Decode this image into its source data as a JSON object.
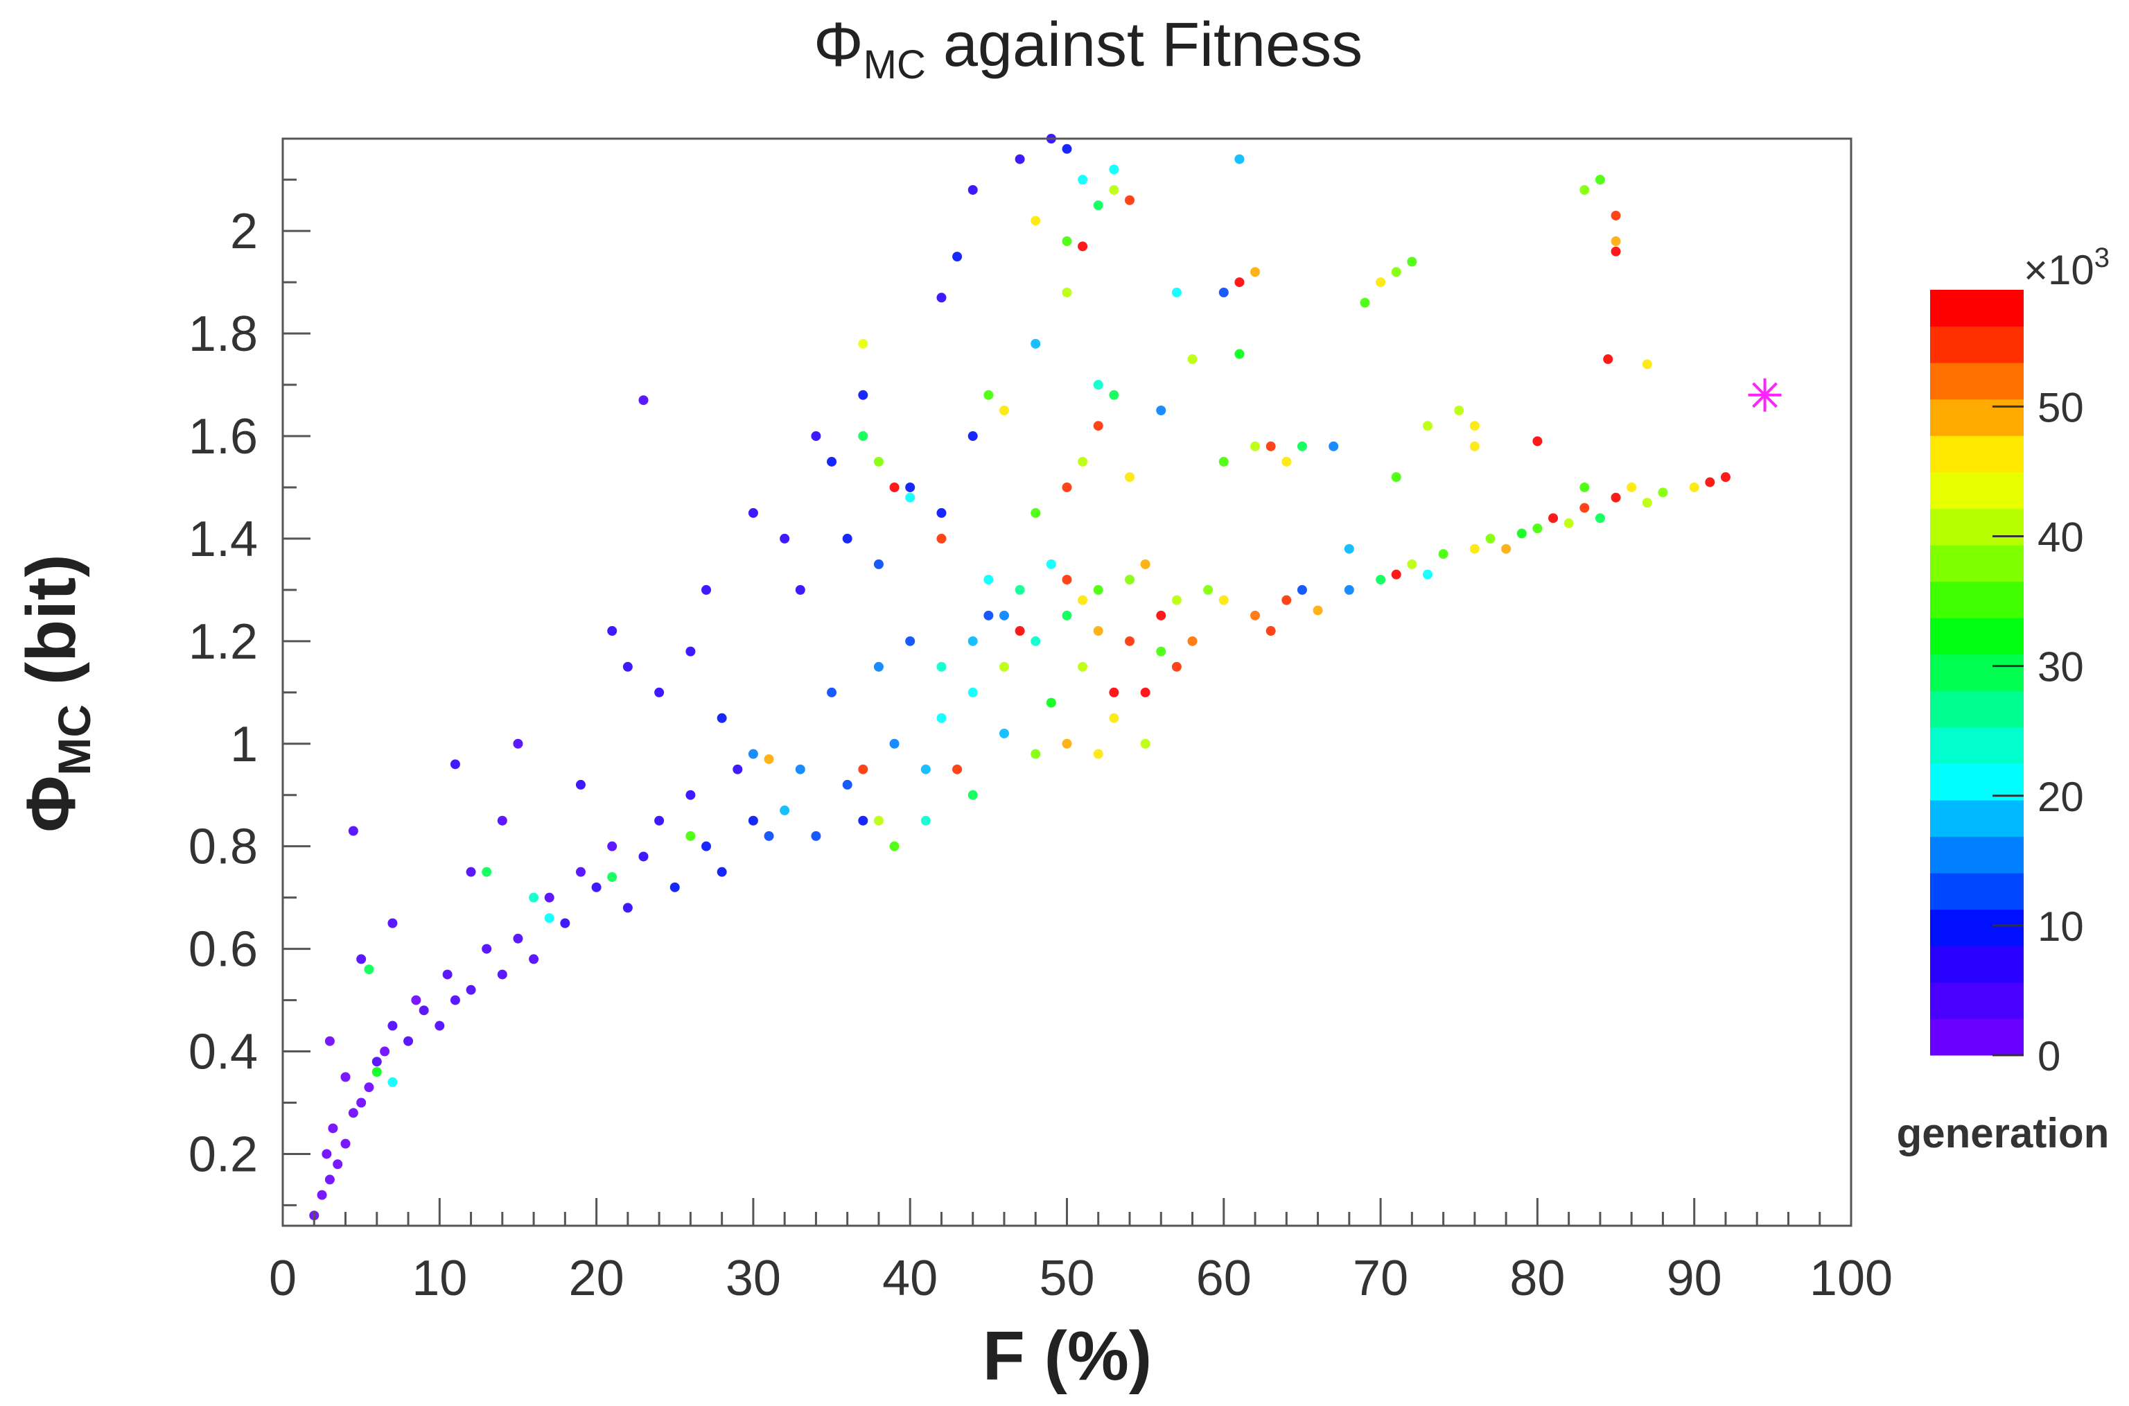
{
  "chart_data": {
    "type": "scatter",
    "title": {
      "symbol": "Φ",
      "sub": "MC",
      "rest": " against Fitness"
    },
    "xlabel": "F (%)",
    "ylabel": {
      "symbol": "Φ",
      "sub": "MC",
      "rest": " (bit)"
    },
    "xlim": [
      0,
      100
    ],
    "ylim": [
      0.06,
      2.18
    ],
    "x_ticks": [
      "0",
      "10",
      "20",
      "30",
      "40",
      "50",
      "60",
      "70",
      "80",
      "90",
      "100"
    ],
    "y_ticks": [
      "0.2",
      "0.4",
      "0.6",
      "0.8",
      "1",
      "1.2",
      "1.4",
      "1.6",
      "1.8",
      "2"
    ],
    "grid": false,
    "colorbar": {
      "label": "generation",
      "multiplier": "×10",
      "multiplier_exp": "3",
      "range": [
        0,
        59
      ],
      "ticks": [
        "0",
        "10",
        "20",
        "30",
        "40",
        "50"
      ],
      "palette": [
        "#6a00ff",
        "#4a00ff",
        "#2a00ff",
        "#0010ff",
        "#0048ff",
        "#0080ff",
        "#00b8ff",
        "#00ffff",
        "#00ffcc",
        "#00ff90",
        "#00ff50",
        "#00ff10",
        "#40ff00",
        "#80ff00",
        "#b8ff00",
        "#e8ff00",
        "#ffe800",
        "#ffaa00",
        "#ff7000",
        "#ff3000",
        "#ff0000"
      ]
    },
    "point_fields": [
      "F",
      "phi_mc",
      "generation_x1000"
    ],
    "points": [
      [
        2,
        0.08,
        1
      ],
      [
        2.5,
        0.12,
        1
      ],
      [
        3,
        0.15,
        2
      ],
      [
        3.5,
        0.18,
        1
      ],
      [
        2.8,
        0.2,
        2
      ],
      [
        4,
        0.22,
        1
      ],
      [
        3.2,
        0.25,
        2
      ],
      [
        4.5,
        0.28,
        2
      ],
      [
        5,
        0.3,
        1
      ],
      [
        4,
        0.35,
        2
      ],
      [
        5.5,
        0.33,
        2
      ],
      [
        6,
        0.38,
        3
      ],
      [
        3,
        0.42,
        2
      ],
      [
        6.5,
        0.4,
        2
      ],
      [
        7,
        0.45,
        3
      ],
      [
        8,
        0.42,
        3
      ],
      [
        8.5,
        0.5,
        2
      ],
      [
        9,
        0.48,
        3
      ],
      [
        10,
        0.45,
        4
      ],
      [
        10.5,
        0.55,
        3
      ],
      [
        11,
        0.5,
        4
      ],
      [
        12,
        0.52,
        4
      ],
      [
        13,
        0.6,
        3
      ],
      [
        14,
        0.55,
        5
      ],
      [
        15,
        0.62,
        4
      ],
      [
        16,
        0.58,
        5
      ],
      [
        17,
        0.7,
        4
      ],
      [
        18,
        0.65,
        6
      ],
      [
        19,
        0.75,
        5
      ],
      [
        20,
        0.72,
        6
      ],
      [
        21,
        0.8,
        5
      ],
      [
        22,
        0.68,
        8
      ],
      [
        23,
        0.78,
        7
      ],
      [
        24,
        0.85,
        8
      ],
      [
        25,
        0.72,
        9
      ],
      [
        26,
        0.9,
        7
      ],
      [
        27,
        0.8,
        9
      ],
      [
        28,
        0.75,
        10
      ],
      [
        29,
        0.95,
        8
      ],
      [
        30,
        0.85,
        10
      ],
      [
        31,
        0.82,
        12
      ],
      [
        12,
        0.75,
        4
      ],
      [
        14,
        0.85,
        4
      ],
      [
        5,
        0.58,
        3
      ],
      [
        4.5,
        0.83,
        4
      ],
      [
        7,
        0.65,
        5
      ],
      [
        23,
        1.67,
        3
      ],
      [
        11,
        0.96,
        6
      ],
      [
        15,
        1.0,
        5
      ],
      [
        19,
        0.92,
        6
      ],
      [
        21,
        1.22,
        7
      ],
      [
        22,
        1.15,
        6
      ],
      [
        24,
        1.1,
        8
      ],
      [
        26,
        1.18,
        7
      ],
      [
        27,
        1.3,
        8
      ],
      [
        28,
        1.05,
        9
      ],
      [
        30,
        1.45,
        8
      ],
      [
        32,
        1.4,
        7
      ],
      [
        33,
        1.3,
        8
      ],
      [
        34,
        1.6,
        7
      ],
      [
        35,
        1.55,
        9
      ],
      [
        36,
        1.4,
        10
      ],
      [
        37,
        1.68,
        9
      ],
      [
        38,
        1.35,
        12
      ],
      [
        40,
        1.5,
        10
      ],
      [
        42,
        1.45,
        11
      ],
      [
        44,
        1.6,
        9
      ],
      [
        42,
        1.87,
        8
      ],
      [
        43,
        1.95,
        9
      ],
      [
        44,
        2.08,
        8
      ],
      [
        47,
        2.14,
        7
      ],
      [
        49,
        2.18,
        8
      ],
      [
        50,
        2.16,
        9
      ],
      [
        45,
        1.25,
        12
      ],
      [
        35,
        1.1,
        14
      ],
      [
        38,
        1.15,
        15
      ],
      [
        40,
        1.2,
        14
      ],
      [
        33,
        0.95,
        16
      ],
      [
        36,
        0.92,
        14
      ],
      [
        39,
        1.0,
        15
      ],
      [
        32,
        0.87,
        18
      ],
      [
        34,
        0.82,
        12
      ],
      [
        37,
        0.85,
        11
      ],
      [
        41,
        0.95,
        17
      ],
      [
        42,
        1.05,
        20
      ],
      [
        44,
        1.1,
        22
      ],
      [
        46,
        1.02,
        19
      ],
      [
        30,
        0.98,
        16
      ],
      [
        31,
        0.97,
        48
      ],
      [
        5.5,
        0.56,
        30
      ],
      [
        6,
        0.36,
        33
      ],
      [
        7,
        0.34,
        20
      ],
      [
        13,
        0.75,
        30
      ],
      [
        16,
        0.7,
        25
      ],
      [
        17,
        0.66,
        22
      ],
      [
        21,
        0.74,
        30
      ],
      [
        26,
        0.82,
        35
      ],
      [
        48,
        1.2,
        25
      ],
      [
        50,
        1.25,
        30
      ],
      [
        52,
        1.3,
        35
      ],
      [
        54,
        1.2,
        55
      ],
      [
        56,
        1.25,
        57
      ],
      [
        55,
        1.1,
        58
      ],
      [
        53,
        1.05,
        45
      ],
      [
        51,
        1.15,
        40
      ],
      [
        49,
        1.08,
        33
      ],
      [
        47,
        1.3,
        28
      ],
      [
        45,
        1.32,
        22
      ],
      [
        50,
        1.32,
        55
      ],
      [
        52,
        1.22,
        50
      ],
      [
        54,
        1.32,
        38
      ],
      [
        57,
        1.28,
        42
      ],
      [
        58,
        1.2,
        52
      ],
      [
        59,
        1.3,
        37
      ],
      [
        60,
        1.28,
        45
      ],
      [
        46,
        1.15,
        42
      ],
      [
        48,
        0.98,
        38
      ],
      [
        50,
        1.0,
        48
      ],
      [
        53,
        1.1,
        57
      ],
      [
        43,
        0.95,
        56
      ],
      [
        44,
        0.9,
        30
      ],
      [
        41,
        0.85,
        25
      ],
      [
        38,
        0.85,
        40
      ],
      [
        37,
        0.95,
        55
      ],
      [
        39,
        0.8,
        35
      ],
      [
        55,
        1.0,
        40
      ],
      [
        57,
        1.15,
        55
      ],
      [
        52,
        0.98,
        45
      ],
      [
        47,
        1.22,
        57
      ],
      [
        49,
        1.35,
        20
      ],
      [
        51,
        1.28,
        45
      ],
      [
        55,
        1.35,
        50
      ],
      [
        56,
        1.18,
        35
      ],
      [
        46,
        1.25,
        15
      ],
      [
        44,
        1.2,
        18
      ],
      [
        42,
        1.15,
        25
      ],
      [
        37,
        1.6,
        30
      ],
      [
        38,
        1.55,
        38
      ],
      [
        39,
        1.5,
        57
      ],
      [
        37,
        1.78,
        43
      ],
      [
        40,
        1.48,
        20
      ],
      [
        42,
        1.4,
        55
      ],
      [
        45,
        1.68,
        35
      ],
      [
        46,
        1.65,
        47
      ],
      [
        48,
        1.45,
        35
      ],
      [
        50,
        1.5,
        55
      ],
      [
        51,
        1.55,
        42
      ],
      [
        52,
        1.62,
        55
      ],
      [
        53,
        1.68,
        30
      ],
      [
        54,
        1.52,
        45
      ],
      [
        48,
        1.78,
        18
      ],
      [
        50,
        1.88,
        40
      ],
      [
        52,
        1.7,
        25
      ],
      [
        56,
        1.65,
        15
      ],
      [
        58,
        1.75,
        40
      ],
      [
        57,
        1.88,
        20
      ],
      [
        60,
        1.88,
        12
      ],
      [
        61,
        1.9,
        57
      ],
      [
        62,
        1.92,
        48
      ],
      [
        61,
        1.76,
        32
      ],
      [
        60,
        1.55,
        35
      ],
      [
        62,
        1.58,
        40
      ],
      [
        63,
        1.58,
        55
      ],
      [
        64,
        1.55,
        45
      ],
      [
        65,
        1.58,
        30
      ],
      [
        67,
        1.58,
        15
      ],
      [
        48,
        2.02,
        45
      ],
      [
        50,
        1.98,
        35
      ],
      [
        51,
        1.97,
        57
      ],
      [
        52,
        2.05,
        30
      ],
      [
        53,
        2.08,
        40
      ],
      [
        54,
        2.06,
        55
      ],
      [
        51,
        2.1,
        20
      ],
      [
        53,
        2.12,
        22
      ],
      [
        61,
        2.14,
        18
      ],
      [
        69,
        1.86,
        35
      ],
      [
        70,
        1.9,
        45
      ],
      [
        71,
        1.92,
        38
      ],
      [
        72,
        1.94,
        35
      ],
      [
        75,
        1.65,
        40
      ],
      [
        76,
        1.62,
        45
      ],
      [
        76,
        1.58,
        47
      ],
      [
        73,
        1.62,
        40
      ],
      [
        80,
        1.59,
        57
      ],
      [
        84,
        2.1,
        35
      ],
      [
        83,
        2.08,
        38
      ],
      [
        85,
        2.03,
        55
      ],
      [
        85,
        1.98,
        50
      ],
      [
        85,
        1.96,
        58
      ],
      [
        84.5,
        1.75,
        57
      ],
      [
        87,
        1.74,
        45
      ],
      [
        71,
        1.52,
        35
      ],
      [
        62,
        1.25,
        52
      ],
      [
        64,
        1.28,
        55
      ],
      [
        66,
        1.26,
        50
      ],
      [
        68,
        1.3,
        15
      ],
      [
        70,
        1.32,
        30
      ],
      [
        71,
        1.33,
        57
      ],
      [
        72,
        1.35,
        40
      ],
      [
        74,
        1.37,
        35
      ],
      [
        76,
        1.38,
        45
      ],
      [
        77,
        1.4,
        38
      ],
      [
        78,
        1.38,
        50
      ],
      [
        80,
        1.42,
        35
      ],
      [
        81,
        1.44,
        57
      ],
      [
        82,
        1.43,
        40
      ],
      [
        83,
        1.46,
        55
      ],
      [
        84,
        1.44,
        30
      ],
      [
        85,
        1.48,
        57
      ],
      [
        86,
        1.5,
        45
      ],
      [
        87,
        1.47,
        40
      ],
      [
        88,
        1.49,
        38
      ],
      [
        90,
        1.5,
        45
      ],
      [
        91,
        1.51,
        57
      ],
      [
        92,
        1.52,
        58
      ],
      [
        68,
        1.38,
        18
      ],
      [
        73,
        1.33,
        20
      ],
      [
        79,
        1.41,
        33
      ],
      [
        83,
        1.5,
        35
      ],
      [
        63,
        1.22,
        55
      ],
      [
        65,
        1.3,
        12
      ]
    ],
    "marker": {
      "F": 94.5,
      "phi_mc": 1.68,
      "color": "#ff22ff",
      "shape": "asterisk"
    }
  }
}
